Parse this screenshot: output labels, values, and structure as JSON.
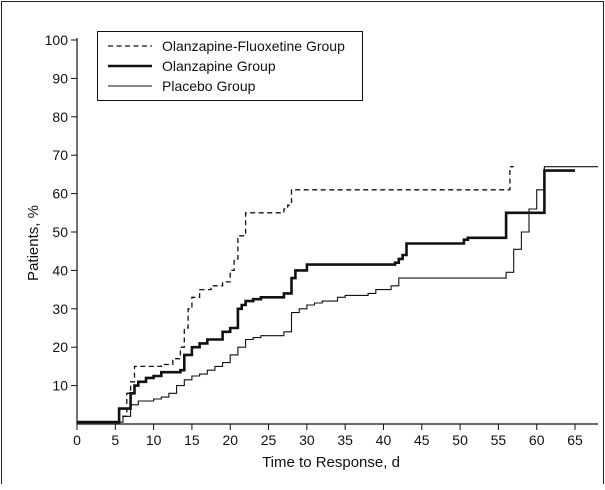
{
  "chart_data": {
    "type": "line",
    "step": true,
    "xlabel": "Time to Response, d",
    "ylabel": "Patients, %",
    "xlim": [
      0,
      68
    ],
    "ylim": [
      0,
      100
    ],
    "xticks": [
      0,
      5,
      10,
      15,
      20,
      25,
      30,
      35,
      40,
      45,
      50,
      55,
      60,
      65
    ],
    "yticks": [
      10,
      20,
      30,
      40,
      50,
      60,
      70,
      80,
      90,
      100
    ],
    "grid": false,
    "legend_position": "top-left",
    "series": [
      {
        "name": "Olanzapine-Fluoxetine Group",
        "style": "dashed",
        "color": "#111111",
        "x": [
          0,
          5.5,
          6.5,
          7,
          7.5,
          11,
          12.5,
          13.5,
          14,
          14.5,
          15,
          16,
          17.5,
          19,
          20,
          20.5,
          21,
          22,
          27,
          27.5,
          28,
          56,
          56.5,
          57
        ],
        "y": [
          0.5,
          2,
          8,
          11,
          15,
          15.5,
          17,
          20,
          25,
          30,
          33,
          35,
          36,
          37,
          40,
          43,
          49,
          55,
          56,
          57,
          61,
          61,
          67,
          67
        ]
      },
      {
        "name": "Olanzapine Group",
        "style": "solid-thick",
        "color": "#111111",
        "x": [
          0,
          5.5,
          7,
          7.5,
          8,
          9,
          10,
          11,
          13.5,
          14,
          15,
          16,
          17,
          19,
          20,
          21,
          21.5,
          22,
          23,
          24,
          27,
          28,
          28.5,
          30,
          41,
          41.5,
          42,
          42.5,
          43,
          50,
          50.5,
          51,
          55,
          56,
          60,
          61,
          65
        ],
        "y": [
          0.5,
          4,
          8,
          10,
          11,
          12,
          12.5,
          13.5,
          14,
          18,
          20,
          21,
          22,
          24,
          25,
          30,
          31,
          32,
          32.5,
          33,
          34,
          38,
          40,
          41.5,
          41.5,
          42,
          43,
          44,
          47,
          47,
          48,
          48.5,
          48.5,
          55,
          55,
          66,
          66
        ]
      },
      {
        "name": "Placebo Group",
        "style": "solid-thin",
        "color": "#111111",
        "x": [
          0,
          6,
          7,
          8,
          10,
          11,
          12,
          13,
          14,
          15,
          16,
          17,
          18,
          19,
          20,
          21,
          22,
          23,
          24,
          27,
          28,
          29,
          30,
          31,
          32,
          34,
          35,
          38,
          39,
          41,
          42,
          55,
          56,
          57,
          58,
          59,
          60,
          61,
          68
        ],
        "y": [
          0.5,
          2,
          5,
          6,
          6.5,
          7,
          8,
          10,
          11.5,
          12.5,
          13,
          14,
          15,
          16,
          18,
          20,
          22,
          22.5,
          23,
          24,
          29,
          30,
          31,
          31.5,
          32,
          33,
          33.5,
          34,
          35,
          36,
          38,
          38,
          39.5,
          45.5,
          50,
          56,
          61,
          67,
          67
        ]
      }
    ]
  }
}
